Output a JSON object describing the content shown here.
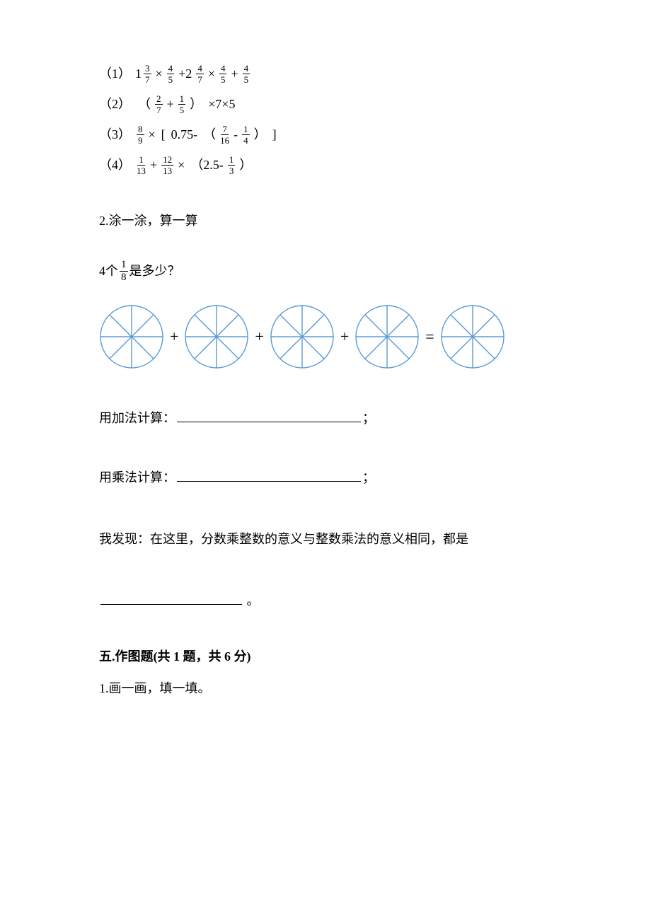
{
  "problems": {
    "p1": {
      "num": "（1）"
    },
    "p2": {
      "num": "（2）"
    },
    "p3": {
      "num": "（3）"
    },
    "p4": {
      "num": "（4）"
    }
  },
  "fractions": {
    "f3_7": {
      "n": "3",
      "d": "7"
    },
    "f4_5": {
      "n": "4",
      "d": "5"
    },
    "f4_7": {
      "n": "4",
      "d": "7"
    },
    "f2_7": {
      "n": "2",
      "d": "7"
    },
    "f1_5": {
      "n": "1",
      "d": "5"
    },
    "f8_9": {
      "n": "8",
      "d": "9"
    },
    "f7_16": {
      "n": "7",
      "d": "16"
    },
    "f1_4": {
      "n": "1",
      "d": "4"
    },
    "f1_13": {
      "n": "1",
      "d": "13"
    },
    "f12_13": {
      "n": "12",
      "d": "13"
    },
    "f1_3": {
      "n": "1",
      "d": "3"
    },
    "f1_8": {
      "n": "1",
      "d": "8"
    }
  },
  "ops": {
    "times": "×",
    "plus": "+",
    "minus": "-",
    "eq": "=",
    "lparen": "（",
    "rparen": "）",
    "lbrack": "[",
    "rbrack": "]",
    "q1_mid": "+2",
    "q2_tail": "×7×5",
    "q3_mid075": "0.75-",
    "q4_mid": "（2.5-"
  },
  "mixed": {
    "m1": "1"
  },
  "section2": {
    "label": "2.涂一涂，算一算",
    "q_pre": "4个",
    "q_post": "是多少？"
  },
  "circles": {
    "radius": 44,
    "segments": 8,
    "stroke": "#5b9bd5",
    "stroke_width": 1.4,
    "plus": "+",
    "eq": "="
  },
  "blanks": {
    "add_label": "用加法计算：",
    "mul_label": "用乘法计算：",
    "semicolon": "；",
    "underline_width": 260,
    "discovery": "我发现：在这里，分数乘整数的意义与整数乘法的意义相同，都是",
    "discovery_underline_width": 200,
    "period": "。"
  },
  "section5": {
    "heading": "五.作图题(共 1 题，共 6 分)",
    "item1": "1.画一画，填一填。"
  }
}
